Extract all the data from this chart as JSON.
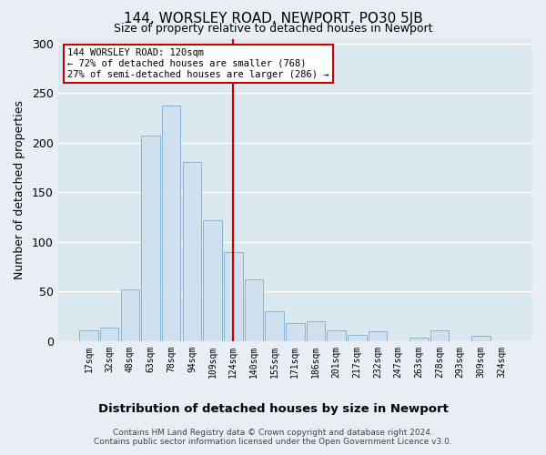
{
  "title": "144, WORSLEY ROAD, NEWPORT, PO30 5JB",
  "subtitle": "Size of property relative to detached houses in Newport",
  "xlabel": "Distribution of detached houses by size in Newport",
  "ylabel": "Number of detached properties",
  "bar_labels": [
    "17sqm",
    "32sqm",
    "48sqm",
    "63sqm",
    "78sqm",
    "94sqm",
    "109sqm",
    "124sqm",
    "140sqm",
    "155sqm",
    "171sqm",
    "186sqm",
    "201sqm",
    "217sqm",
    "232sqm",
    "247sqm",
    "263sqm",
    "278sqm",
    "293sqm",
    "309sqm",
    "324sqm"
  ],
  "bar_values": [
    11,
    14,
    52,
    207,
    238,
    181,
    122,
    90,
    62,
    30,
    18,
    20,
    11,
    6,
    10,
    0,
    4,
    11,
    0,
    5,
    0
  ],
  "bar_color": "#cfe0ef",
  "bar_edge_color": "#8ab4d4",
  "highlight_bar_index": 7,
  "highlight_line_color": "#cc0000",
  "ylim": [
    0,
    305
  ],
  "yticks": [
    0,
    50,
    100,
    150,
    200,
    250,
    300
  ],
  "annotation_title": "144 WORSLEY ROAD: 120sqm",
  "annotation_line1": "← 72% of detached houses are smaller (768)",
  "annotation_line2": "27% of semi-detached houses are larger (286) →",
  "annotation_box_color": "#ffffff",
  "annotation_box_edge": "#cc0000",
  "footer_line1": "Contains HM Land Registry data © Crown copyright and database right 2024.",
  "footer_line2": "Contains public sector information licensed under the Open Government Licence v3.0.",
  "background_color": "#e8eef4",
  "plot_bg_color": "#dce8f0",
  "grid_color": "#ffffff"
}
